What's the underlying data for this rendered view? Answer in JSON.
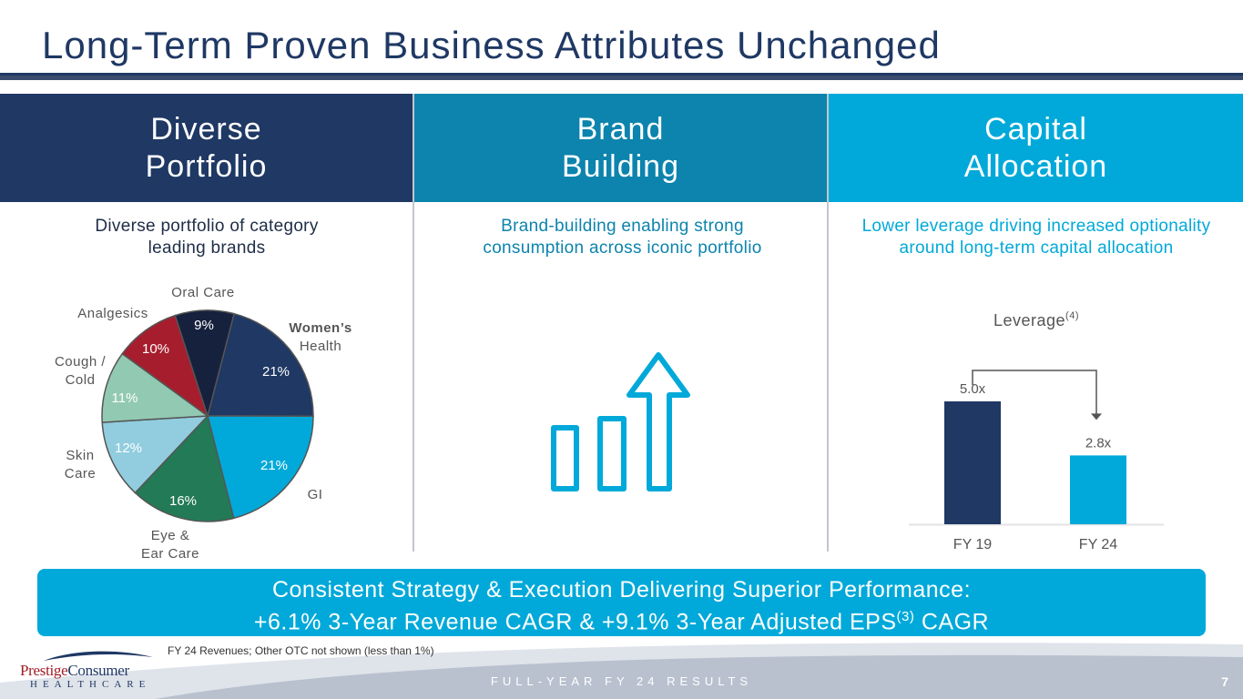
{
  "slide": {
    "title": "Long-Term Proven Business Attributes Unchanged",
    "page_number": "7",
    "footer_label": "FULL-YEAR FY 24 RESULTS",
    "footnote": "FY 24 Revenues; Other OTC not shown (less than 1%)"
  },
  "columns": [
    {
      "heading_line1": "Diverse",
      "heading_line2": "Portfolio",
      "subtitle_line1": "Diverse portfolio of category",
      "subtitle_line2": "leading brands",
      "color": "#1f3864"
    },
    {
      "heading_line1": "Brand",
      "heading_line2": "Building",
      "subtitle_line1": "Brand-building enabling strong",
      "subtitle_line2": "consumption across iconic portfolio",
      "color": "#0c84ad"
    },
    {
      "heading_line1": "Capital",
      "heading_line2": "Allocation",
      "subtitle_line1": "Lower leverage driving increased optionality",
      "subtitle_line2": "around long-term capital allocation",
      "color": "#00a9d9"
    }
  ],
  "banner": {
    "line1": "Consistent Strategy & Execution Delivering Superior Performance:",
    "line2_pre": "+6.1% 3-Year Revenue CAGR & +9.1% 3-Year Adjusted EPS",
    "line2_sup": "(3)",
    "line2_post": " CAGR"
  },
  "logo": {
    "brand": "Prestige",
    "name": "Consumer",
    "sub": "HEALTHCARE"
  },
  "chart_data": [
    {
      "type": "pie",
      "title": "",
      "slices": [
        {
          "label_line1": "Women’s",
          "label_line2": "Health",
          "value": 21,
          "value_label": "21%",
          "color": "#1f3864",
          "bold_first": true
        },
        {
          "label_line1": "GI",
          "label_line2": "",
          "value": 21,
          "value_label": "21%",
          "color": "#00a9d9",
          "bold_first": false
        },
        {
          "label_line1": "Eye &",
          "label_line2": "Ear Care",
          "value": 16,
          "value_label": "16%",
          "color": "#237a57",
          "bold_first": false
        },
        {
          "label_line1": "Skin",
          "label_line2": "Care",
          "value": 12,
          "value_label": "12%",
          "color": "#91cddf",
          "bold_first": false
        },
        {
          "label_line1": "Cough /",
          "label_line2": "Cold",
          "value": 11,
          "value_label": "11%",
          "color": "#92c9b2",
          "bold_first": false
        },
        {
          "label_line1": "Analgesics",
          "label_line2": "",
          "value": 10,
          "value_label": "10%",
          "color": "#a61e2d",
          "bold_first": false
        },
        {
          "label_line1": "Oral Care",
          "label_line2": "",
          "value": 9,
          "value_label": "9%",
          "color": "#16213e",
          "bold_first": false
        }
      ]
    },
    {
      "type": "bar",
      "title": "Leverage",
      "title_sup": "(4)",
      "categories": [
        "FY 19",
        "FY 24"
      ],
      "values": [
        5.0,
        2.8
      ],
      "value_labels": [
        "5.0x",
        "2.8x"
      ],
      "colors": [
        "#1f3864",
        "#00a9d9"
      ],
      "ylim": [
        0,
        5.0
      ]
    }
  ]
}
